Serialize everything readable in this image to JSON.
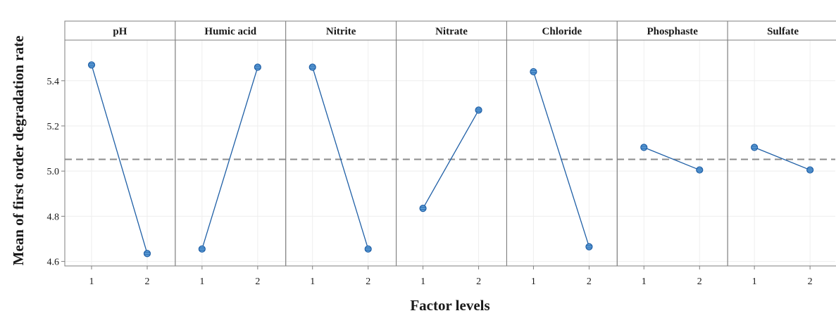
{
  "chart_data": {
    "type": "line",
    "chart_kind": "main effects plot",
    "xlabel": "Factor levels",
    "ylabel": "Mean of first order degradation rate",
    "ylim": [
      4.58,
      5.58
    ],
    "y_ticks": [
      "4.6",
      "4.8",
      "5.0",
      "5.2",
      "5.4"
    ],
    "x_levels": [
      "1",
      "2"
    ],
    "reference_line": {
      "value": 5.052,
      "style": "dashed",
      "color": "#8c8c8c"
    },
    "grid": true,
    "colors": {
      "line": "#1f5fa6",
      "marker_fill": "#5b9bd5",
      "frame": "#7f7f7f",
      "grid": "#eeeeee",
      "header_bg": "#ffffff"
    },
    "panels": [
      {
        "factor": "pH",
        "values": [
          5.47,
          4.635
        ]
      },
      {
        "factor": "Humic acid",
        "values": [
          4.655,
          5.46
        ]
      },
      {
        "factor": "Nitrite",
        "values": [
          5.46,
          4.655
        ]
      },
      {
        "factor": "Nitrate",
        "values": [
          4.835,
          5.27
        ]
      },
      {
        "factor": "Chloride",
        "values": [
          5.44,
          4.665
        ]
      },
      {
        "factor": "Phosphaste",
        "values": [
          5.105,
          5.005
        ]
      },
      {
        "factor": "Sulfate",
        "values": [
          5.105,
          5.005
        ]
      }
    ]
  }
}
